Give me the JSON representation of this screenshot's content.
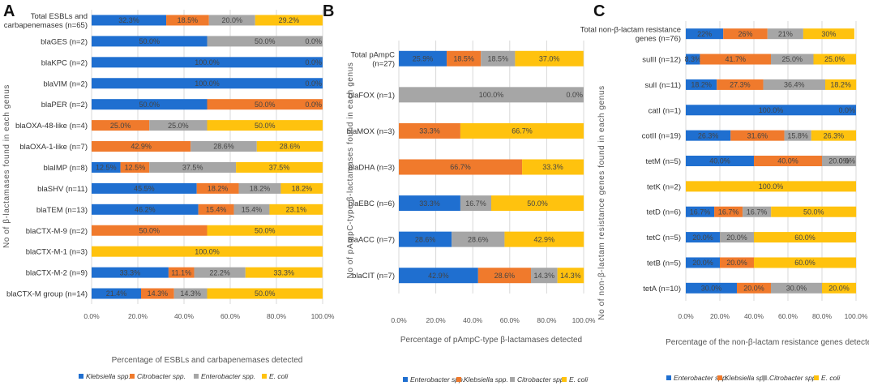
{
  "colors": {
    "klebsiella": "#1f6fd0",
    "citrobacter": "#f07a2c",
    "enterobacter": "#a6a6a6",
    "ecoli": "#ffc20e",
    "grid": "#d9d9d9"
  },
  "chart_data": [
    {
      "panel": "A",
      "type": "bar",
      "orientation": "horizontal-stacked",
      "xlabel": "Percentage of ESBLs and carbapenemases detected",
      "ylabel": "No of β-lactamases found in each genus",
      "xticks": [
        "0.0%",
        "20.0%",
        "40.0%",
        "60.0%",
        "80.0%",
        "100.0%"
      ],
      "xlim": [
        0,
        100
      ],
      "legend": [
        {
          "key": "klebsiella",
          "text": "Klebsiella spp."
        },
        {
          "key": "citrobacter",
          "text": "Citrobacter spp."
        },
        {
          "key": "enterobacter",
          "text": "Enterobacter spp."
        },
        {
          "key": "ecoli",
          "text": "E. coli"
        }
      ],
      "rows": [
        {
          "label": [
            "Total ESBLs and",
            "carbapenemases (n=65)"
          ],
          "values": [
            32.3,
            18.5,
            20.0,
            29.2
          ],
          "labels": [
            "32.3%",
            "18.5%",
            "20.0%",
            "29.2%"
          ]
        },
        {
          "label": [
            "blaGES (n=2)"
          ],
          "values": [
            50,
            0,
            50,
            0
          ],
          "labels": [
            "50.0%",
            "0.0%",
            "50.0%",
            "0.0%"
          ]
        },
        {
          "label": [
            "blaKPC (n=2)"
          ],
          "values": [
            100,
            0,
            0,
            0
          ],
          "labels": [
            "100.0%",
            "",
            "",
            "0.0%"
          ]
        },
        {
          "label": [
            "blaVIM (n=2)"
          ],
          "values": [
            100,
            0,
            0,
            0
          ],
          "labels": [
            "100.0%",
            "",
            "",
            "0.0%"
          ]
        },
        {
          "label": [
            "blaPER (n=2)"
          ],
          "values": [
            50,
            50,
            0,
            0
          ],
          "labels": [
            "50.0%",
            "50.0%",
            "",
            "0.0%"
          ]
        },
        {
          "label": [
            "blaOXA-48-like (n=4)"
          ],
          "values": [
            0,
            25,
            25,
            50
          ],
          "labels": [
            "0.0%",
            "25.0%",
            "25.0%",
            "50.0%"
          ]
        },
        {
          "label": [
            "blaOXA-1-like (n=7)"
          ],
          "values": [
            0,
            42.9,
            28.6,
            28.6
          ],
          "labels": [
            "0.0%",
            "42.9%",
            "28.6%",
            "28.6%"
          ]
        },
        {
          "label": [
            "blaIMP (n=8)"
          ],
          "values": [
            12.5,
            12.5,
            37.5,
            37.5
          ],
          "labels": [
            "12.5%",
            "12.5%",
            "37.5%",
            "37.5%"
          ]
        },
        {
          "label": [
            "blaSHV (n=11)"
          ],
          "values": [
            45.5,
            18.2,
            18.2,
            18.2
          ],
          "labels": [
            "45.5%",
            "18.2%",
            "18.2%",
            "18.2%"
          ]
        },
        {
          "label": [
            "blaTEM (n=13)"
          ],
          "values": [
            46.2,
            15.4,
            15.4,
            23.1
          ],
          "labels": [
            "46.2%",
            "15.4%",
            "15.4%",
            "23.1%"
          ]
        },
        {
          "label": [
            "blaCTX-M-9 (n=2)"
          ],
          "values": [
            0,
            50,
            0,
            50
          ],
          "labels": [
            "0.0%",
            "50.0%",
            "0.0%",
            "50.0%"
          ]
        },
        {
          "label": [
            "blaCTX-M-1 (n=3)"
          ],
          "values": [
            0,
            0,
            0,
            100
          ],
          "labels": [
            "0.0%",
            "",
            "",
            "100.0%"
          ]
        },
        {
          "label": [
            "blaCTX-M-2 (n=9)"
          ],
          "values": [
            33.3,
            11.1,
            22.2,
            33.3
          ],
          "labels": [
            "33.3%",
            "11.1%",
            "22.2%",
            "33.3%"
          ]
        },
        {
          "label": [
            "blaCTX-M group (n=14)"
          ],
          "values": [
            21.4,
            14.3,
            14.3,
            50
          ],
          "labels": [
            "21.4%",
            "14.3%",
            "14.3%",
            "50.0%"
          ]
        }
      ]
    },
    {
      "panel": "B",
      "type": "bar",
      "orientation": "horizontal-stacked",
      "xlabel": "Percentage of pAmpC-type β-lactamases detected",
      "ylabel": "No of pAmpC-type β-lactamases found in each genus",
      "xticks": [
        "0.0%",
        "20.0%",
        "40.0%",
        "60.0%",
        "80.0%",
        "100.0%"
      ],
      "xlim": [
        0,
        100
      ],
      "legend": [
        {
          "key": "klebsiella",
          "text": "Enterobacter spp."
        },
        {
          "key": "citrobacter",
          "text": "Klebsiella spp."
        },
        {
          "key": "enterobacter",
          "text": "Citrobacter spp."
        },
        {
          "key": "ecoli",
          "text": "E. coli"
        }
      ],
      "rows": [
        {
          "label": [
            "Total pAmpC",
            "(n=27)"
          ],
          "values": [
            25.9,
            18.5,
            18.5,
            37.0
          ],
          "labels": [
            "25.9%",
            "18.5%",
            "18.5%",
            "37.0%"
          ]
        },
        {
          "label": [
            "blaFOX (n=1)"
          ],
          "values": [
            0,
            0,
            100,
            0
          ],
          "labels": [
            "0.0%",
            "",
            "100.0%",
            "0.0%"
          ]
        },
        {
          "label": [
            "blaMOX (n=3)"
          ],
          "values": [
            0,
            33.3,
            0,
            66.7
          ],
          "labels": [
            "0.0%",
            "33.3%",
            "0.0%",
            "66.7%"
          ]
        },
        {
          "label": [
            "blaDHA (n=3)"
          ],
          "values": [
            0,
            66.7,
            0,
            33.3
          ],
          "labels": [
            "0.0%",
            "66.7%",
            "0.0%",
            "33.3%"
          ]
        },
        {
          "label": [
            "blaEBC (n=6)"
          ],
          "values": [
            33.3,
            0,
            16.7,
            50
          ],
          "labels": [
            "33.3%",
            "0.0%",
            "16.7%",
            "50.0%"
          ]
        },
        {
          "label": [
            "blaACC (n=7)"
          ],
          "values": [
            28.6,
            0,
            28.6,
            42.9
          ],
          "labels": [
            "28.6%",
            "0.0%",
            "28.6%",
            "42.9%"
          ]
        },
        {
          "label": [
            "blaCIT (n=7)"
          ],
          "values": [
            42.9,
            28.6,
            14.3,
            14.3
          ],
          "labels": [
            "42.9%",
            "28.6%",
            "14.3%",
            "14.3%"
          ]
        }
      ]
    },
    {
      "panel": "C",
      "type": "bar",
      "orientation": "horizontal-stacked",
      "xlabel": "Percentage of the non-β-lactam resistance genes detected",
      "ylabel": "No of non-β-lactam resistance genes found in each genus",
      "xticks": [
        "0.0%",
        "20.0%",
        "40.0%",
        "60.0%",
        "80.0%",
        "100.0%"
      ],
      "xlim": [
        0,
        100
      ],
      "legend": [
        {
          "key": "klebsiella",
          "text": "Enterobacter spp."
        },
        {
          "key": "citrobacter",
          "text": "Klebsiella spp."
        },
        {
          "key": "enterobacter",
          "text": "Citrobacter spp."
        },
        {
          "key": "ecoli",
          "text": "E. coli"
        }
      ],
      "rows": [
        {
          "label": [
            "Total non-β-lactam resistance",
            "genes (n=76)"
          ],
          "values": [
            22,
            26,
            21,
            30
          ],
          "labels": [
            "22%",
            "26%",
            "21%",
            "30%"
          ]
        },
        {
          "label": [
            "sulII (n=12)"
          ],
          "values": [
            8.3,
            41.7,
            25,
            25
          ],
          "labels": [
            "8.3%",
            "41.7%",
            "25.0%",
            "25.0%"
          ]
        },
        {
          "label": [
            "sulI (n=11)"
          ],
          "values": [
            18.2,
            27.3,
            36.4,
            18.2
          ],
          "labels": [
            "18.2%",
            "27.3%",
            "36.4%",
            "18.2%"
          ]
        },
        {
          "label": [
            "catI (n=1)"
          ],
          "values": [
            100,
            0,
            0,
            0
          ],
          "labels": [
            "100.0%",
            "",
            "",
            "0.0%"
          ]
        },
        {
          "label": [
            "cotII (n=19)"
          ],
          "values": [
            26.3,
            31.6,
            15.8,
            26.3
          ],
          "labels": [
            "26.3%",
            "31.6%",
            "15.8%",
            "26.3%"
          ]
        },
        {
          "label": [
            "tetM (n=5)"
          ],
          "values": [
            40,
            40,
            20,
            0
          ],
          "labels": [
            "40.0%",
            "40.0%",
            "20.0%",
            "0.0%"
          ]
        },
        {
          "label": [
            "tetK (n=2)"
          ],
          "values": [
            0,
            0,
            0,
            100
          ],
          "labels": [
            "0%",
            "",
            "",
            "100.0%"
          ]
        },
        {
          "label": [
            "tetD (n=6)"
          ],
          "values": [
            16.7,
            16.7,
            16.7,
            50
          ],
          "labels": [
            "16.7%",
            "16.7%",
            "16.7%",
            "50.0%"
          ]
        },
        {
          "label": [
            "tetC (n=5)"
          ],
          "values": [
            20,
            0,
            20,
            60
          ],
          "labels": [
            "20.0%",
            "0.0%",
            "20.0%",
            "60.0%"
          ]
        },
        {
          "label": [
            "tetB (n=5)"
          ],
          "values": [
            20,
            20,
            0,
            60
          ],
          "labels": [
            "20.0%",
            "20.0%",
            "0.0%",
            "60.0%"
          ]
        },
        {
          "label": [
            "tetA (n=10)"
          ],
          "values": [
            30,
            20,
            30,
            20
          ],
          "labels": [
            "30.0%",
            "20.0%",
            "30.0%",
            "20.0%"
          ]
        }
      ]
    }
  ]
}
